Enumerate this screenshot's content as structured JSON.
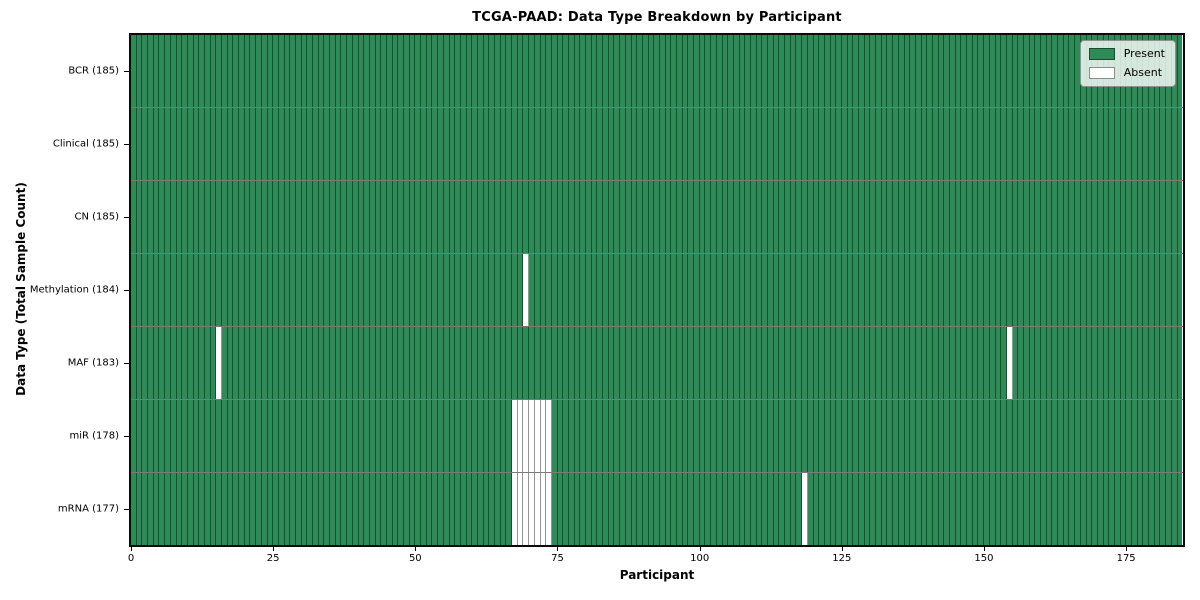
{
  "chart_data": {
    "type": "heatmap",
    "title": "TCGA-PAAD: Data Type Breakdown by Participant",
    "xlabel": "Participant",
    "ylabel": "Data Type (Total Sample Count)",
    "n_participants": 185,
    "xlim": [
      0,
      185
    ],
    "x_ticks": [
      0,
      25,
      50,
      75,
      100,
      125,
      150,
      175
    ],
    "grid": "per-cell edges",
    "legend_position": "upper right",
    "legend": [
      {
        "label": "Present",
        "color": "#2e8b57"
      },
      {
        "label": "Absent",
        "color": "#ffffff"
      }
    ],
    "colors": {
      "present": "#2e8b57",
      "absent": "#ffffff"
    },
    "rows": [
      {
        "label": "BCR (185)",
        "data_type": "BCR",
        "total_sample_count": 185,
        "absent_participant_indices": []
      },
      {
        "label": "Clinical (185)",
        "data_type": "Clinical",
        "total_sample_count": 185,
        "absent_participant_indices": []
      },
      {
        "label": "CN (185)",
        "data_type": "CN",
        "total_sample_count": 185,
        "absent_participant_indices": []
      },
      {
        "label": "Methylation (184)",
        "data_type": "Methylation",
        "total_sample_count": 184,
        "absent_participant_indices": [
          69
        ]
      },
      {
        "label": "MAF (183)",
        "data_type": "MAF",
        "total_sample_count": 183,
        "absent_participant_indices": [
          15,
          154
        ]
      },
      {
        "label": "miR (178)",
        "data_type": "miR",
        "total_sample_count": 178,
        "absent_participant_indices": [
          67,
          68,
          69,
          70,
          71,
          72,
          73
        ]
      },
      {
        "label": "mRNA (177)",
        "data_type": "mRNA",
        "total_sample_count": 177,
        "absent_participant_indices": [
          67,
          68,
          69,
          70,
          71,
          72,
          73,
          118
        ]
      }
    ]
  }
}
